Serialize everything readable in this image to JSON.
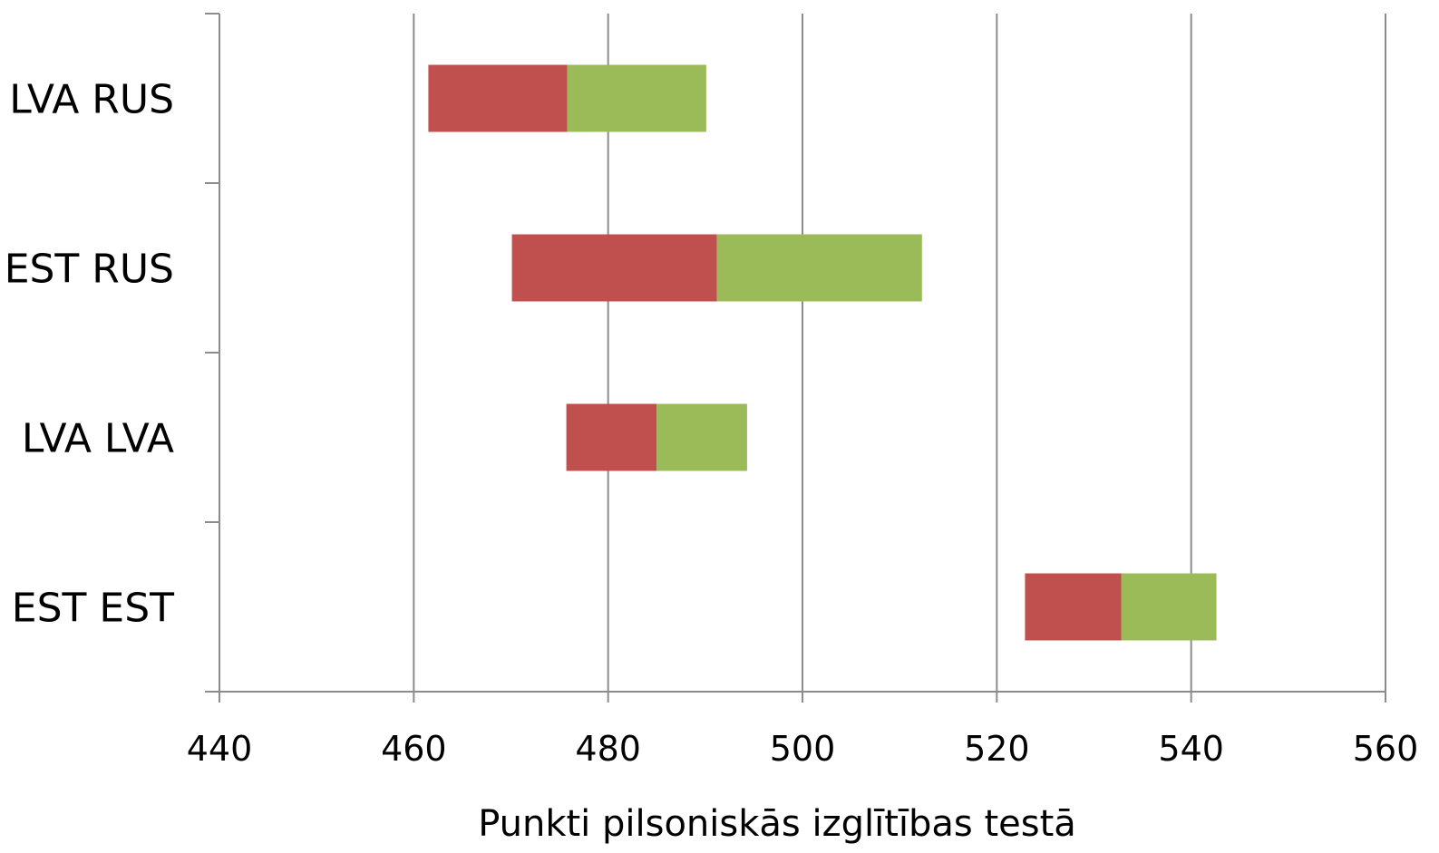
{
  "chart_data": {
    "type": "bar",
    "orientation": "horizontal",
    "stacked": true,
    "categories": [
      "LVA RUS",
      "EST RUS",
      "LVA LVA",
      "EST EST"
    ],
    "series": [
      {
        "key": "lower",
        "color": "#c0504d",
        "values": [
          [
            461.5,
            475.8
          ],
          [
            470.1,
            491.2
          ],
          [
            475.7,
            485.0
          ],
          [
            522.9,
            532.8
          ]
        ]
      },
      {
        "key": "upper",
        "color": "#9bbb59",
        "values": [
          [
            475.8,
            490.1
          ],
          [
            491.2,
            512.3
          ],
          [
            485.0,
            494.3
          ],
          [
            532.8,
            542.6
          ]
        ]
      }
    ],
    "xlabel": "Punkti pilsoniskās izglītības testā",
    "xlim": [
      440,
      560
    ],
    "xticks": [
      "440",
      "460",
      "480",
      "500",
      "520",
      "540",
      "560"
    ],
    "grid": true
  }
}
